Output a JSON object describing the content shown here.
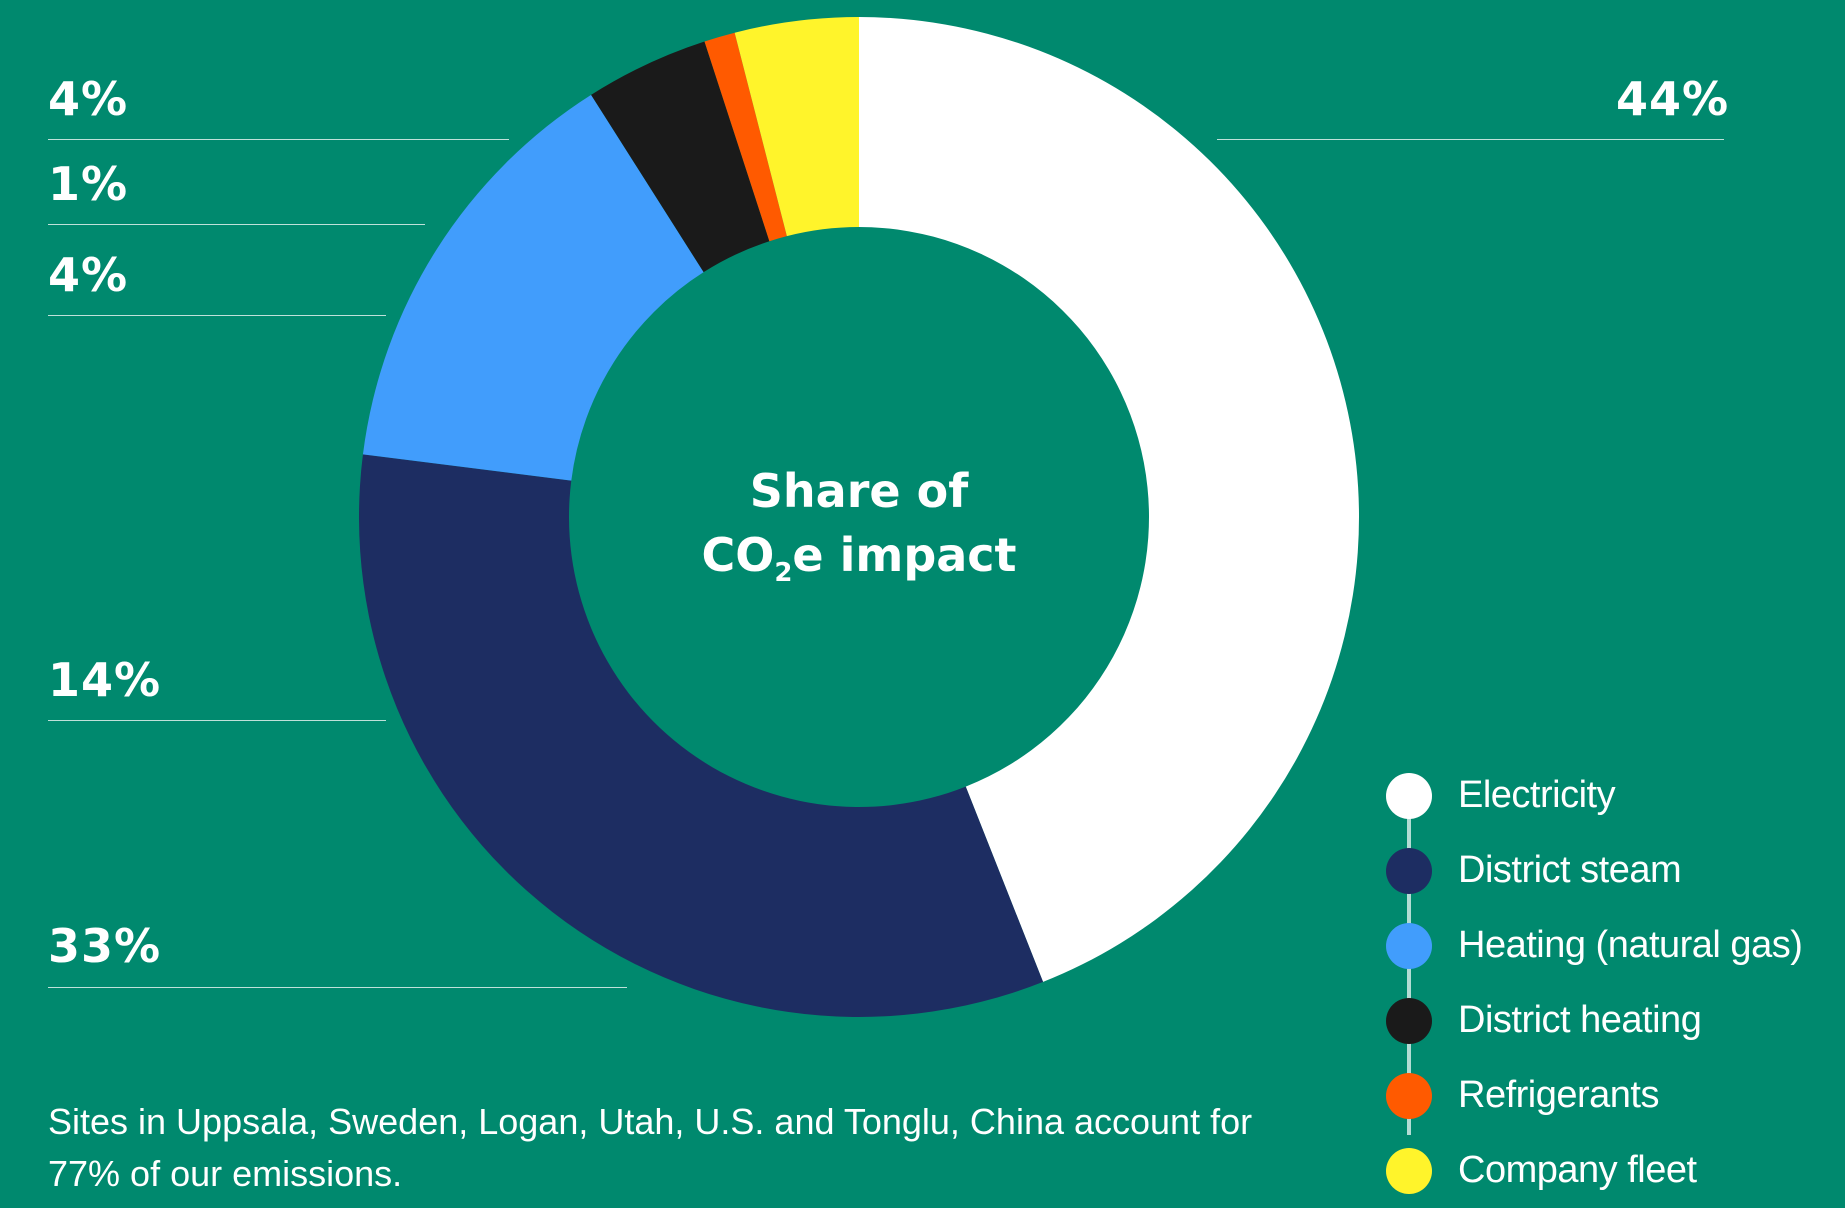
{
  "chart_data": {
    "type": "pie",
    "title": "Share of CO₂e impact",
    "title_parts": {
      "line1": "Share of",
      "line2_pre": "CO",
      "line2_sub": "2",
      "line2_post": "e impact"
    },
    "categories": [
      "Electricity",
      "District steam",
      "Heating (natural gas)",
      "District heating",
      "Refrigerants",
      "Company fleet"
    ],
    "values": [
      44,
      33,
      14,
      4,
      1,
      4
    ],
    "labels": [
      "44%",
      "33%",
      "14%",
      "4%",
      "1%",
      "4%"
    ],
    "colors": [
      "#ffffff",
      "#1d2d62",
      "#419dfc",
      "#1a1a1a",
      "#ff5a00",
      "#fff42b"
    ],
    "donut": true,
    "legend_position": "bottom-right"
  },
  "footnote": "Sites in Uppsala, Sweden, Logan, Utah, U.S. and Tonglu, China account for 77% of our emissions."
}
